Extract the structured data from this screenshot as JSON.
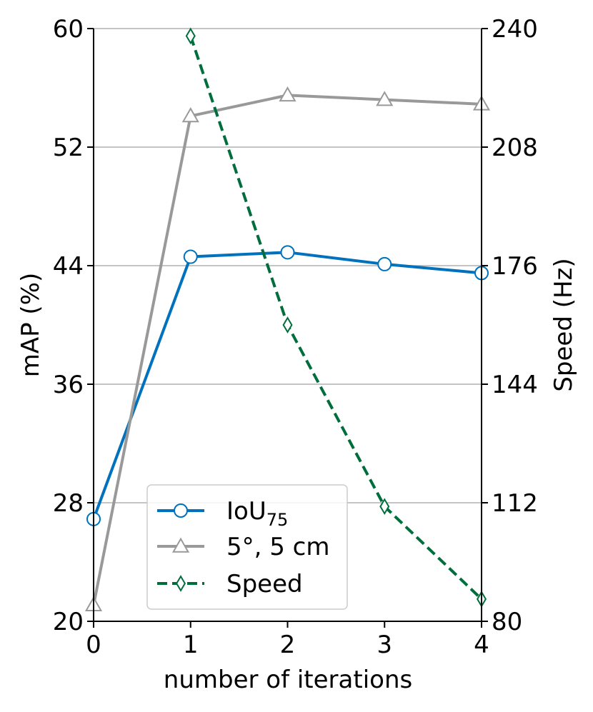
{
  "chart_data": {
    "type": "line",
    "xlabel": "number of iterations",
    "ylabel_left": "mAP (%)",
    "ylabel_right": "Speed (Hz)",
    "x": [
      0,
      1,
      2,
      3,
      4
    ],
    "xticks": [
      "0",
      "1",
      "2",
      "3",
      "4"
    ],
    "ylim_left": [
      20,
      60
    ],
    "yticks_left": [
      "20",
      "28",
      "36",
      "44",
      "52",
      "60"
    ],
    "ylim_right": [
      80,
      240
    ],
    "yticks_right": [
      "80",
      "112",
      "144",
      "176",
      "208",
      "240"
    ],
    "grid": "horizontal",
    "legend_position": "lower-left",
    "series": [
      {
        "name": "IoU",
        "name_subscript": "75",
        "axis": "left",
        "color": "#0072BD",
        "marker": "circle",
        "linestyle": "solid",
        "values": [
          26.9,
          44.6,
          44.9,
          44.1,
          43.5
        ]
      },
      {
        "name": "5°, 5 cm",
        "axis": "left",
        "color": "#999999",
        "marker": "triangle",
        "linestyle": "solid",
        "values": [
          21.1,
          54.1,
          55.5,
          55.2,
          54.9
        ]
      },
      {
        "name": "Speed",
        "axis": "right",
        "color": "#006E3C",
        "marker": "diamond",
        "linestyle": "dashed",
        "values": [
          null,
          238,
          160,
          111,
          86
        ]
      }
    ]
  }
}
